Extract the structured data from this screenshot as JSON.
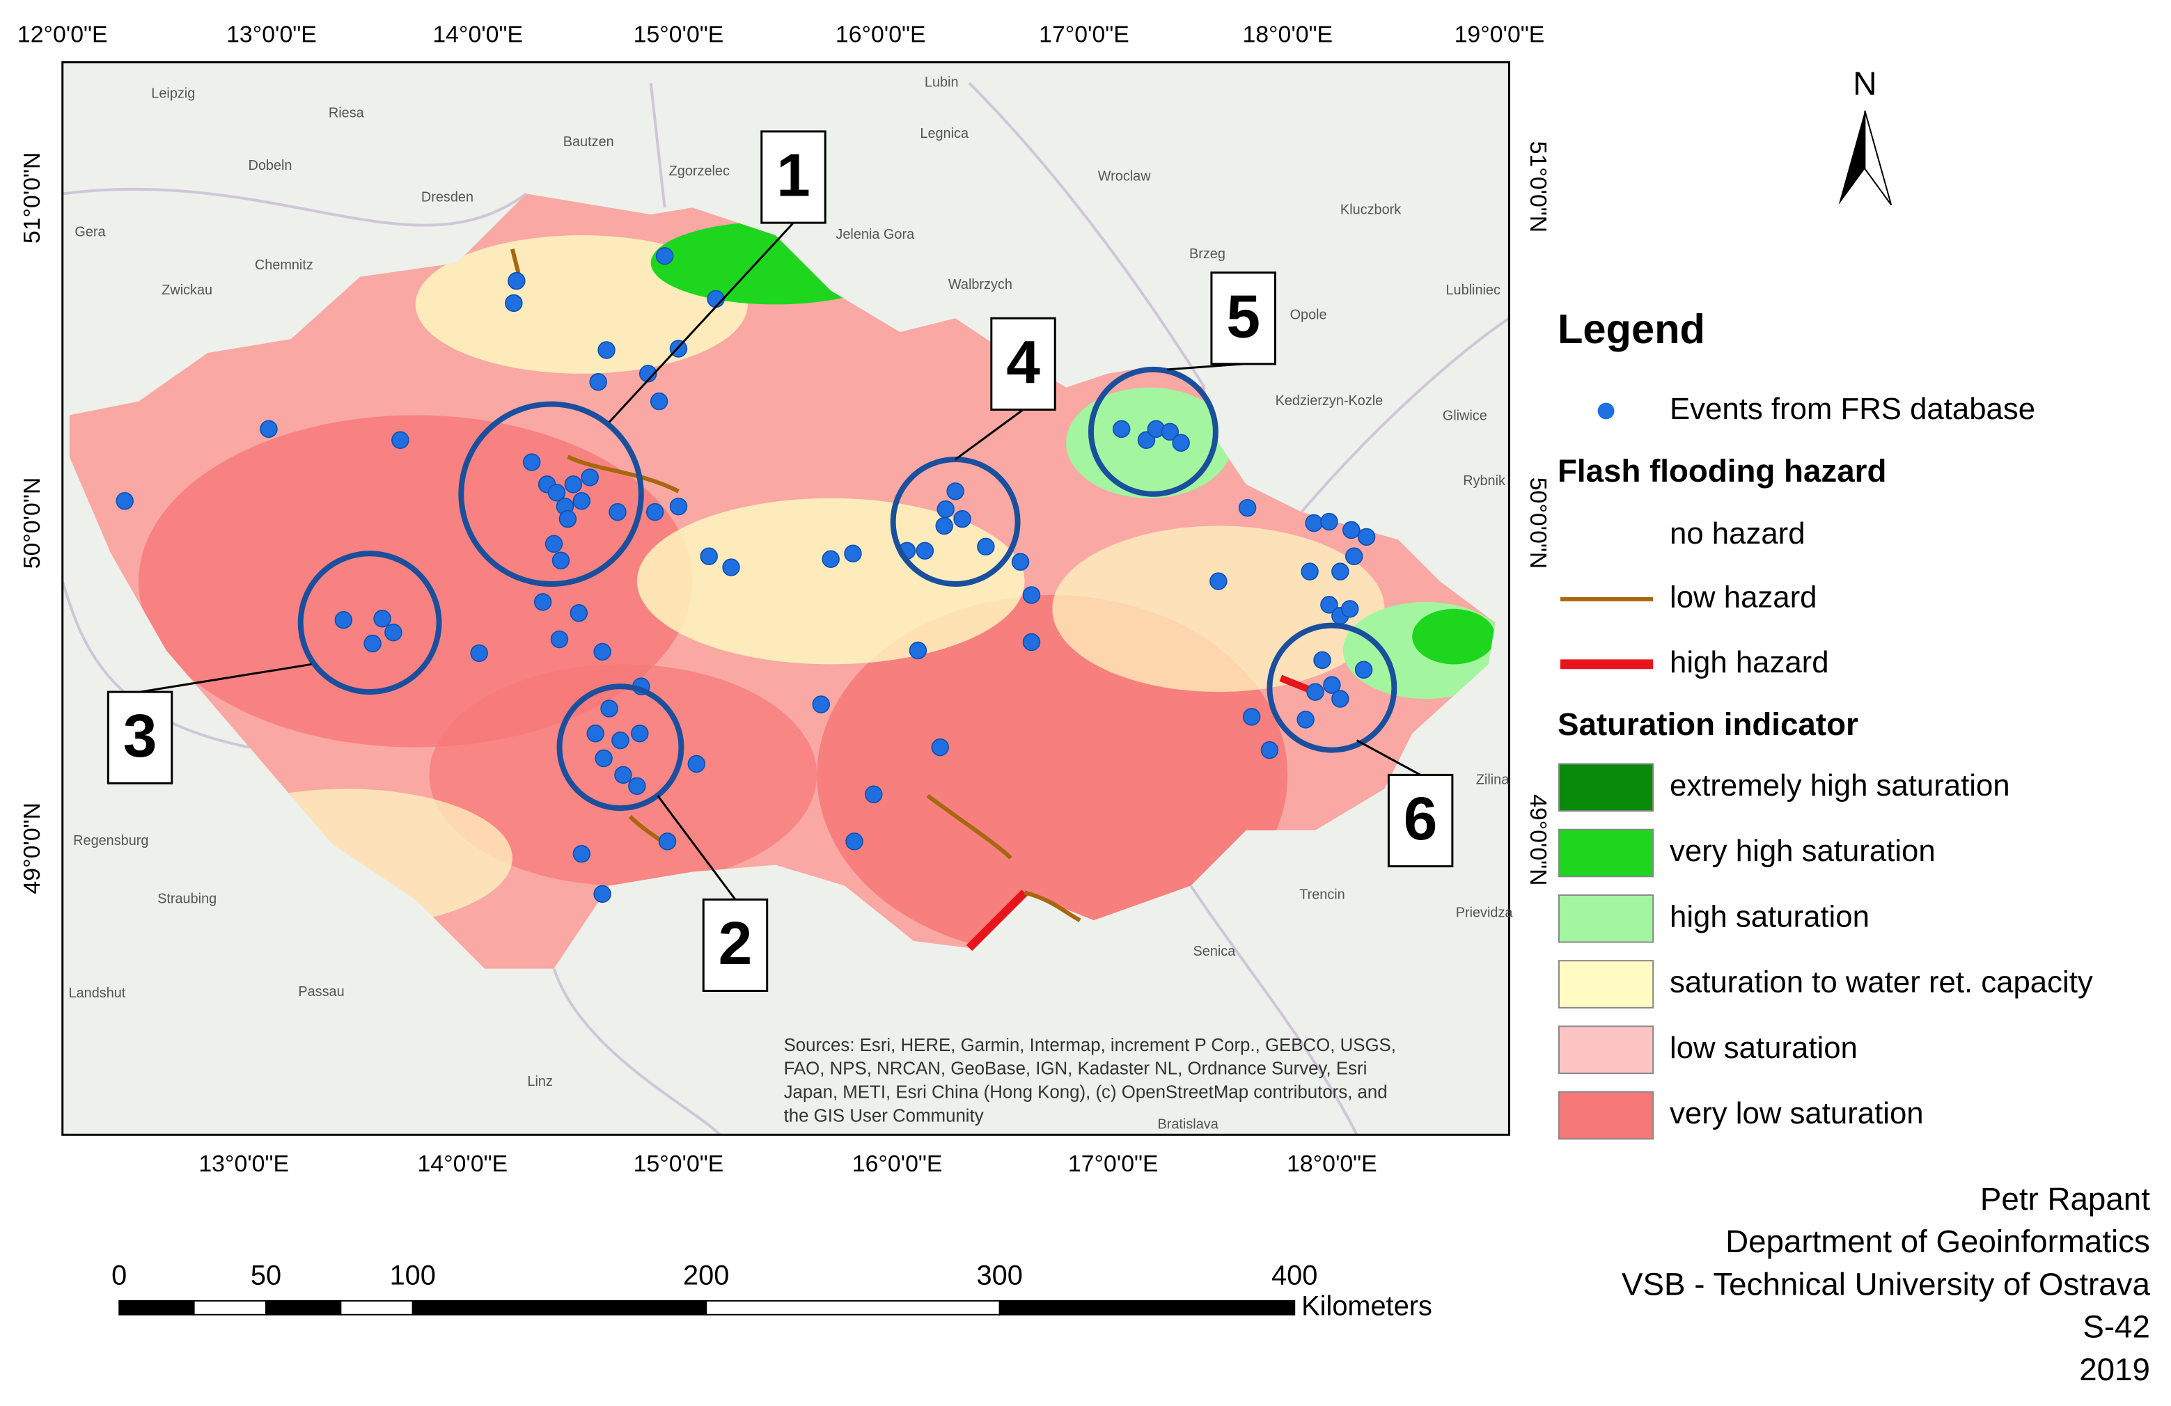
{
  "map": {
    "top_labels": [
      "12°0'0\"E",
      "13°0'0\"E",
      "14°0'0\"E",
      "15°0'0\"E",
      "16°0'0\"E",
      "17°0'0\"E",
      "18°0'0\"E",
      "19°0'0\"E"
    ],
    "bottom_labels": [
      "13°0'0\"E",
      "14°0'0\"E",
      "15°0'0\"E",
      "16°0'0\"E",
      "17°0'0\"E",
      "18°0'0\"E"
    ],
    "left_labels": [
      "51°0'0\"N",
      "50°0'0\"N",
      "49°0'0\"N"
    ],
    "right_labels": [
      "51°0'0\"N",
      "50°0'0\"N",
      "49°0'0\"N"
    ],
    "north": "N",
    "callouts": [
      "1",
      "2",
      "3",
      "4",
      "5",
      "6"
    ],
    "place_labels": [
      "Leipzig",
      "Riesa",
      "Dresden",
      "Bautzen",
      "Zgorzelec",
      "Lubin",
      "Legnica",
      "Wroclaw",
      "Chemnitz",
      "Zwickau",
      "Jelenia Gora",
      "Walbrzych",
      "Brzeg",
      "Opole",
      "Kluczbork",
      "Gliwice",
      "Rybnik",
      "Regensburg",
      "Straubing",
      "Passau",
      "Landshut",
      "Linz",
      "Bratislava",
      "Trencin",
      "Senica",
      "Zilina",
      "Prievidza",
      "Dobeln",
      "Gera",
      "Kedzierzyn-Kozle",
      "Lubliniec"
    ],
    "attribution": [
      "Sources: Esri, HERE, Garmin, Intermap, increment P Corp., GEBCO, USGS,",
      "FAO, NPS, NRCAN, GeoBase, IGN, Kadaster NL, Ordnance Survey, Esri",
      "Japan, METI, Esri China (Hong Kong), (c) OpenStreetMap contributors, and",
      "the GIS User Community"
    ]
  },
  "legend": {
    "title": "Legend",
    "events": "Events from FRS database",
    "hazard_title": "Flash flooding hazard",
    "hazard_items": [
      {
        "label": "no hazard",
        "color": "none"
      },
      {
        "label": "low hazard",
        "color": "#a6670f"
      },
      {
        "label": "high hazard",
        "color": "#e8141b"
      }
    ],
    "saturation_title": "Saturation indicator",
    "saturation_items": [
      {
        "label": "extremely high saturation",
        "color": "#0a8a0a"
      },
      {
        "label": "very high saturation",
        "color": "#1ed61e"
      },
      {
        "label": "high saturation",
        "color": "#a3f5a0"
      },
      {
        "label": "saturation to water ret. capacity",
        "color": "#fffbc2"
      },
      {
        "label": "low saturation",
        "color": "#fcc3c3"
      },
      {
        "label": "very low saturation",
        "color": "#f77878"
      }
    ]
  },
  "scale_bar": {
    "ticks": [
      "0",
      "50",
      "100",
      "200",
      "300",
      "400"
    ],
    "unit": "Kilometers"
  },
  "credits": [
    "Petr Rapant",
    "Department of Geoinformatics",
    "VSB - Technical University of Ostrava",
    "S-42",
    "2019"
  ]
}
